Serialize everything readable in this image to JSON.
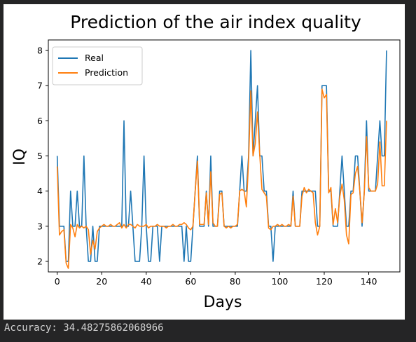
{
  "chart_data": {
    "type": "line",
    "title": "Prediction of the air index quality",
    "xlabel": "Days",
    "ylabel": "IQ",
    "xlim": [
      -4,
      154
    ],
    "ylim": [
      1.7,
      8.3
    ],
    "xticks": [
      0,
      20,
      40,
      60,
      80,
      100,
      120,
      140
    ],
    "yticks": [
      2,
      3,
      4,
      5,
      6,
      7,
      8
    ],
    "grid": false,
    "legend_position": "top-left",
    "series": [
      {
        "name": "Real",
        "color": "#1f77b4",
        "values": [
          5,
          3,
          3,
          3,
          2,
          2,
          4,
          3,
          3,
          4,
          3,
          3,
          5,
          3,
          2,
          2,
          3,
          2,
          2,
          3,
          3,
          3,
          3,
          3,
          3,
          3,
          3,
          3,
          3,
          3,
          6,
          3,
          3,
          4,
          3,
          2,
          2,
          2,
          3,
          5,
          3,
          2,
          2,
          3,
          3,
          3,
          2,
          3,
          3,
          3,
          3,
          3,
          3,
          3,
          3,
          3,
          3,
          2,
          3,
          2,
          2,
          3,
          4,
          5,
          3,
          3,
          3,
          4,
          3,
          5,
          3,
          3,
          3,
          4,
          4,
          3,
          3,
          3,
          3,
          3,
          3,
          3,
          4,
          5,
          4,
          4,
          5,
          8,
          5,
          6,
          7,
          5,
          5,
          4,
          4,
          3,
          3,
          2,
          3,
          3,
          3,
          3,
          3,
          3,
          3,
          3,
          4,
          3,
          3,
          3,
          4,
          4,
          4,
          4,
          4,
          4,
          4,
          3,
          3,
          7,
          7,
          7,
          4,
          4,
          3,
          3,
          3,
          4,
          5,
          4,
          3,
          3,
          4,
          4,
          5,
          5,
          4,
          3,
          4,
          6,
          4,
          4,
          4,
          4,
          5,
          6,
          5,
          5,
          8
        ]
      },
      {
        "name": "Prediction",
        "color": "#ff7f0e",
        "values": [
          4.7,
          2.75,
          2.85,
          2.9,
          1.95,
          1.8,
          3.05,
          2.95,
          2.7,
          3.05,
          2.95,
          3.0,
          2.95,
          3.0,
          2.9,
          2.2,
          2.6,
          2.35,
          2.85,
          2.95,
          3.0,
          3.05,
          3.0,
          3.0,
          3.05,
          3.0,
          3.0,
          3.05,
          3.1,
          2.95,
          3.05,
          2.95,
          3.05,
          3.05,
          3.0,
          2.95,
          3.05,
          3.0,
          3.0,
          3.0,
          3.05,
          2.95,
          3.0,
          3.0,
          3.0,
          3.05,
          3.0,
          3.0,
          3.0,
          2.95,
          3.0,
          3.0,
          3.05,
          3.0,
          3.0,
          3.05,
          3.05,
          3.1,
          3.05,
          2.95,
          2.9,
          3.0,
          4.0,
          4.85,
          3.05,
          3.05,
          3.05,
          3.95,
          3.05,
          4.55,
          3.1,
          3.0,
          3.0,
          3.9,
          3.95,
          3.0,
          2.95,
          3.0,
          2.95,
          3.0,
          3.0,
          3.05,
          4.0,
          4.05,
          4.0,
          3.55,
          4.85,
          6.85,
          5.0,
          5.35,
          6.25,
          5.05,
          4.05,
          3.95,
          3.85,
          2.95,
          2.9,
          3.0,
          3.0,
          3.05,
          3.0,
          3.05,
          3.0,
          3.0,
          3.05,
          3.0,
          3.85,
          3.0,
          3.0,
          3.0,
          3.85,
          4.1,
          3.95,
          4.05,
          4.0,
          3.95,
          3.1,
          2.75,
          3.0,
          6.9,
          6.65,
          6.75,
          3.95,
          4.1,
          3.05,
          3.5,
          3.1,
          3.85,
          4.2,
          3.75,
          2.75,
          2.5,
          3.9,
          3.95,
          4.5,
          4.7,
          4.0,
          3.1,
          3.95,
          5.55,
          4.1,
          4.0,
          4.0,
          4.0,
          4.2,
          5.4,
          4.15,
          4.15,
          6.0
        ]
      }
    ]
  },
  "console": {
    "text": "Accuracy: 34.48275862068966"
  },
  "colors": {
    "background": "#252526",
    "figure": "#ffffff",
    "console_text": "#d4d4d4"
  }
}
